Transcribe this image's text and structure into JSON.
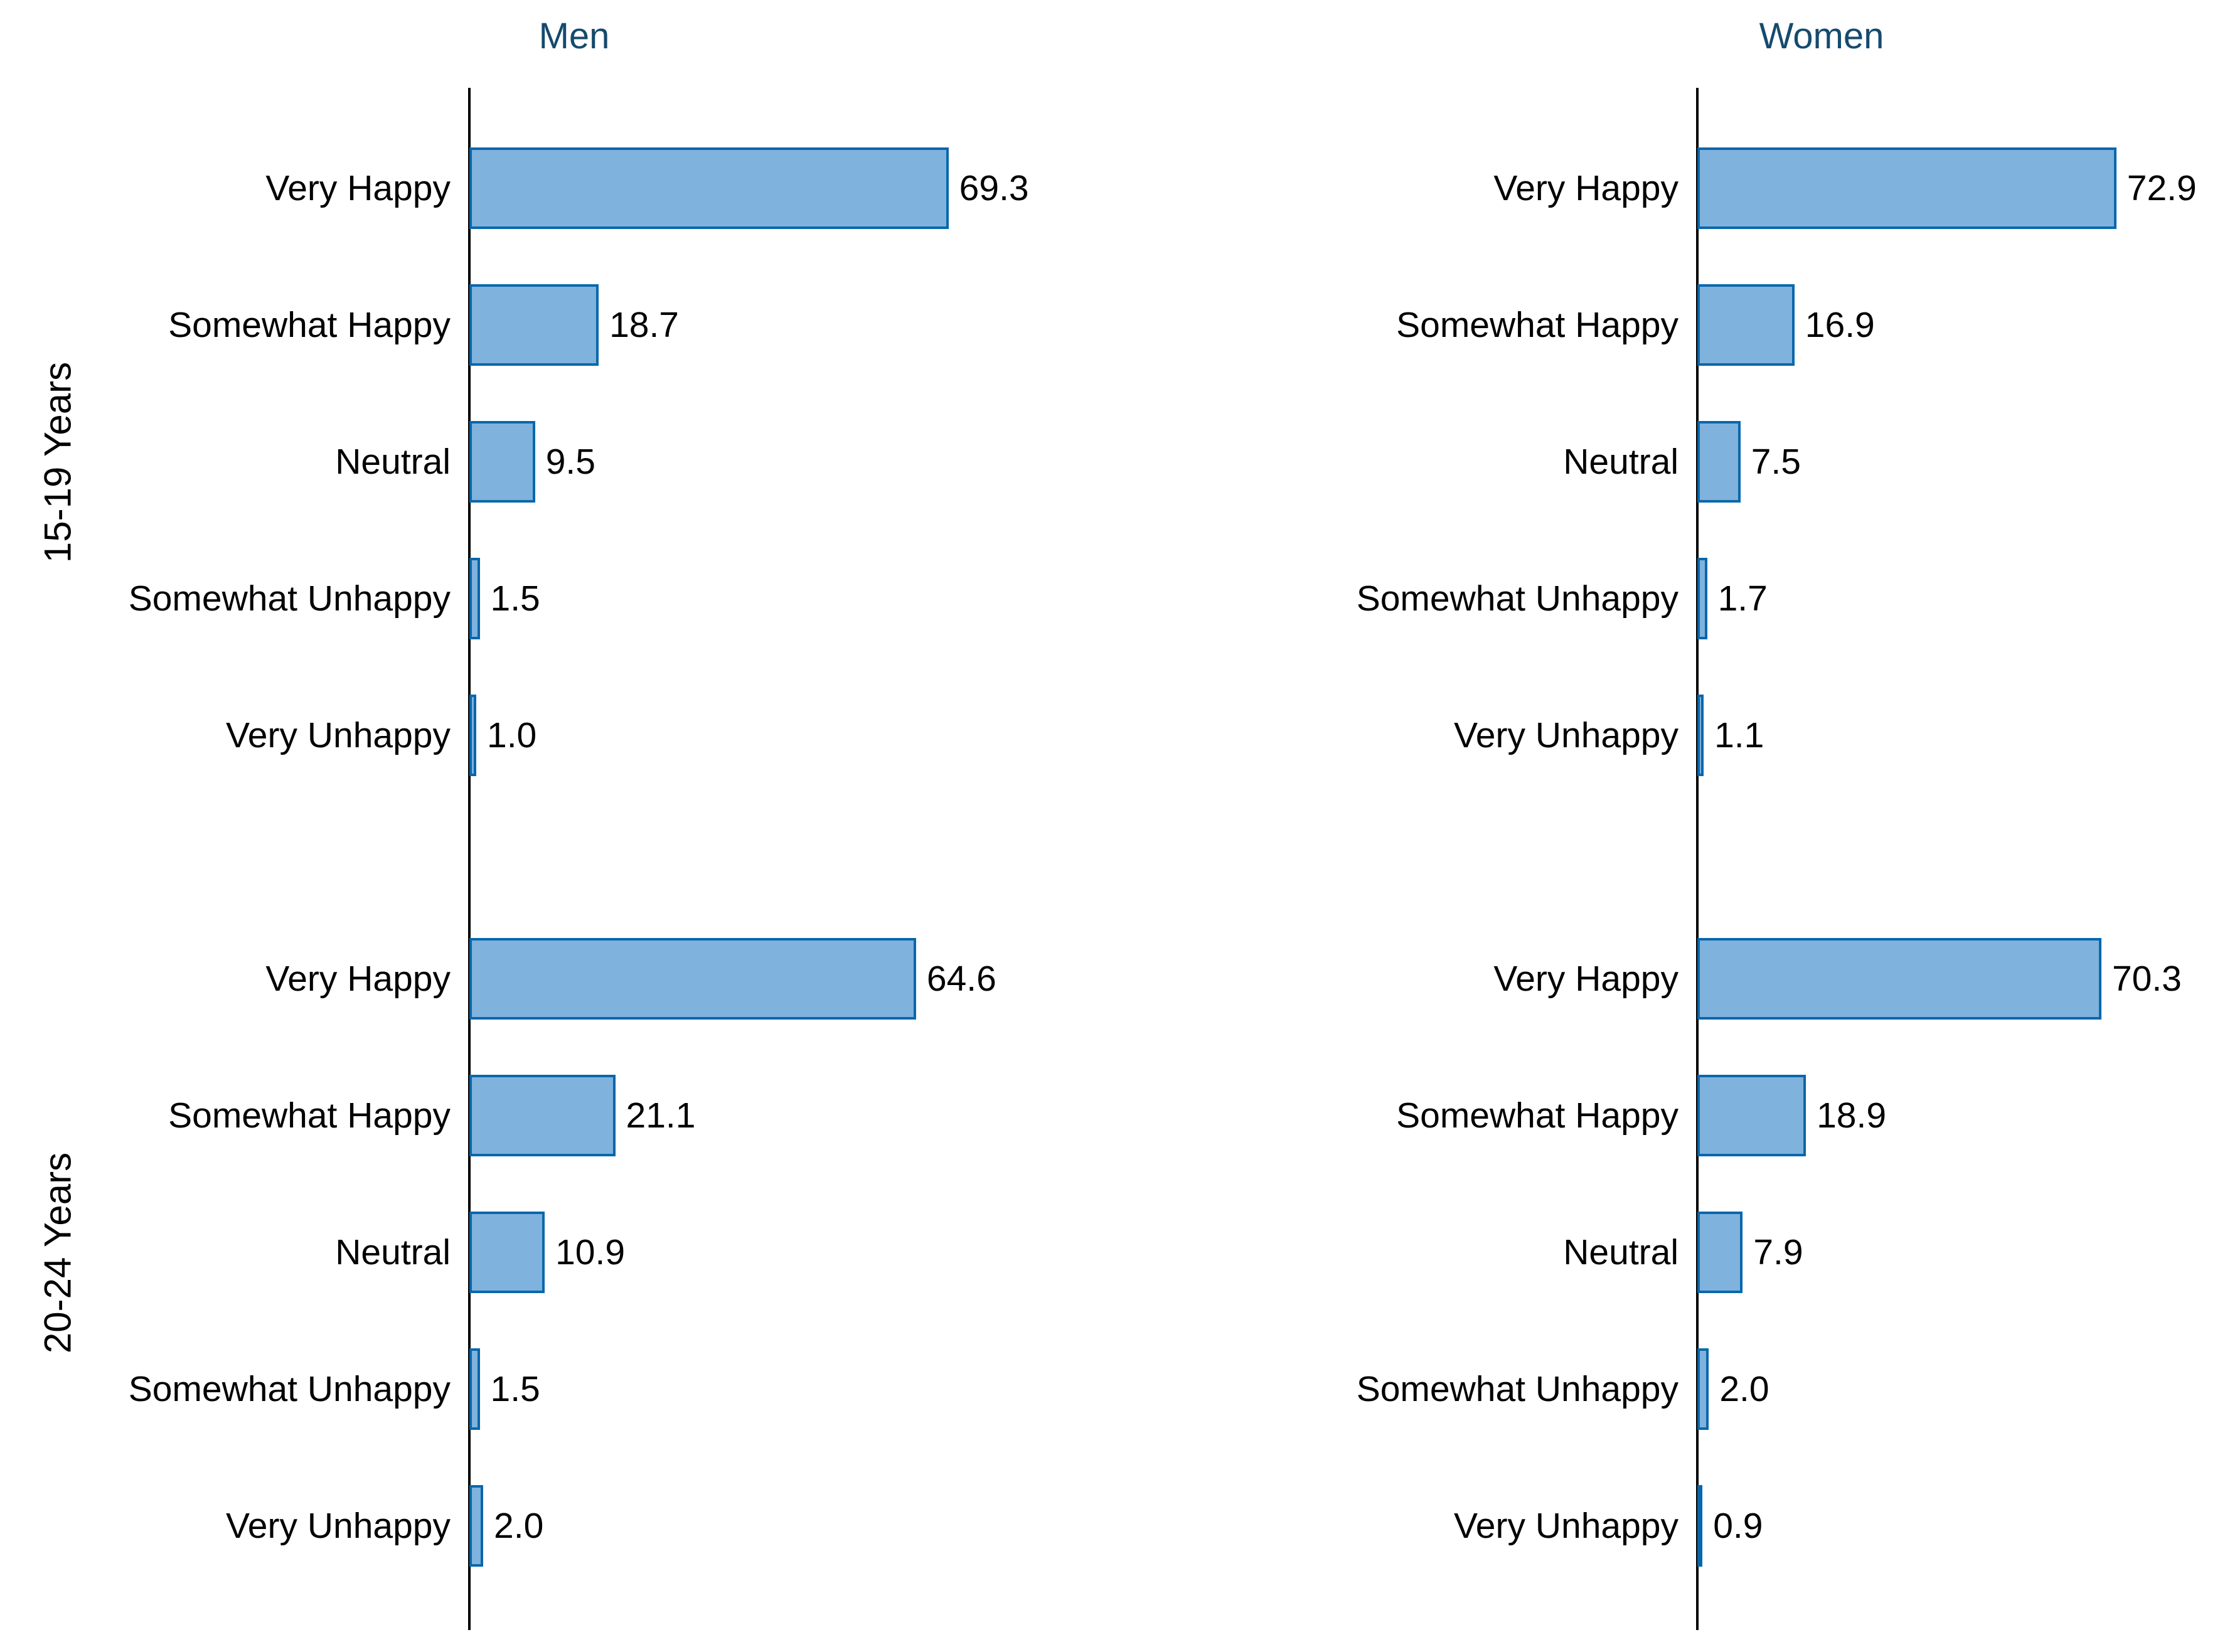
{
  "chart_data": {
    "type": "bar",
    "orientation": "horizontal",
    "facet_columns": [
      "Men",
      "Women"
    ],
    "facet_rows": [
      "15-19 Years",
      "20-24 Years"
    ],
    "categories": [
      "Very Happy",
      "Somewhat Happy",
      "Neutral",
      "Somewhat Unhappy",
      "Very Unhappy"
    ],
    "panels": [
      {
        "column": "Men",
        "row": "15-19 Years",
        "values": [
          69.3,
          18.7,
          9.5,
          1.5,
          1.0
        ]
      },
      {
        "column": "Women",
        "row": "15-19 Years",
        "values": [
          72.9,
          16.9,
          7.5,
          1.7,
          1.1
        ]
      },
      {
        "column": "Men",
        "row": "20-24 Years",
        "values": [
          64.6,
          21.1,
          10.9,
          1.5,
          2.0
        ]
      },
      {
        "column": "Women",
        "row": "20-24 Years",
        "values": [
          70.3,
          18.9,
          7.9,
          2.0,
          0.9
        ]
      }
    ],
    "value_labels_shown": true,
    "value_label_format": "one-decimal",
    "xlim": [
      0,
      100
    ],
    "grid": false,
    "legend": "none",
    "colors": {
      "bar_fill": "#7FB2DC",
      "bar_border": "#0867AC",
      "column_title": "#164A6E",
      "text": "#000000",
      "axis": "#000000",
      "background": "#FFFFFF"
    }
  }
}
